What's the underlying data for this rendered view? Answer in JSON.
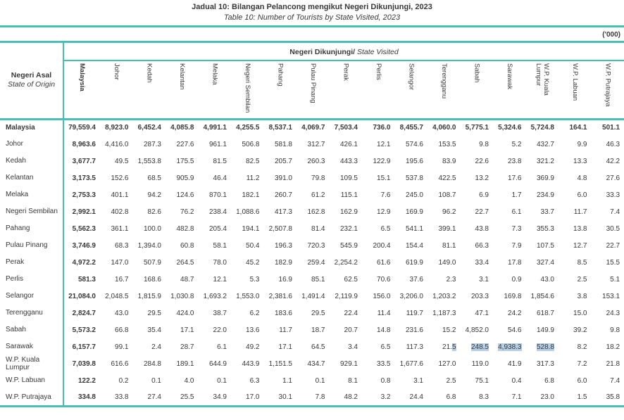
{
  "title": "Jadual 10: Bilangan Pelancong mengikut Negeri Dikunjungi, 2023",
  "subtitle": "Table 10: Number of Tourists by State Visited, 2023",
  "unit_label": "('000)",
  "colors": {
    "accent_teal": "#45c0b4",
    "selection_highlight": "#b5cfe6",
    "text": "#383838"
  },
  "table": {
    "origin_header_my": "Negeri Asal",
    "origin_header_en": "State of Origin",
    "visited_header_my": "Negeri Dikunjungi/",
    "visited_header_en": " State Visited",
    "columns": [
      "Malaysia",
      "Johor",
      "Kedah",
      "Kelantan",
      "Melaka",
      "Negeri Sembilan",
      "Pahang",
      "Pulau Pinang",
      "Perak",
      "Perlis",
      "Selangor",
      "Terengganu",
      "Sabah",
      "Sarawak",
      "W.P. Kuala Lumpur",
      "W.P. Labuan",
      "W.P. Putrajaya"
    ],
    "rows": [
      {
        "label": "Malaysia",
        "bold": true,
        "values": [
          "79,559.4",
          "8,923.0",
          "6,452.4",
          "4,085.8",
          "4,991.1",
          "4,255.5",
          "8,537.1",
          "4,069.7",
          "7,503.4",
          "736.0",
          "8,455.7",
          "4,060.0",
          "5,775.1",
          "5,324.6",
          "5,724.8",
          "164.1",
          "501.1"
        ]
      },
      {
        "label": "Johor",
        "values": [
          "8,963.6",
          "4,416.0",
          "287.3",
          "227.6",
          "961.1",
          "506.8",
          "581.8",
          "312.7",
          "426.1",
          "12.1",
          "574.6",
          "153.5",
          "9.8",
          "5.2",
          "432.7",
          "9.9",
          "46.3"
        ]
      },
      {
        "label": "Kedah",
        "values": [
          "3,677.7",
          "49.5",
          "1,553.8",
          "175.5",
          "81.5",
          "82.5",
          "205.7",
          "260.3",
          "443.3",
          "122.9",
          "195.6",
          "83.9",
          "22.6",
          "23.8",
          "321.2",
          "13.3",
          "42.2"
        ]
      },
      {
        "label": "Kelantan",
        "values": [
          "3,173.5",
          "152.6",
          "68.5",
          "905.9",
          "46.4",
          "11.2",
          "391.0",
          "79.8",
          "109.5",
          "15.1",
          "537.8",
          "422.5",
          "13.2",
          "17.6",
          "369.9",
          "4.8",
          "27.6"
        ]
      },
      {
        "label": "Melaka",
        "values": [
          "2,753.3",
          "401.1",
          "94.2",
          "124.6",
          "870.1",
          "182.1",
          "260.7",
          "61.2",
          "115.1",
          "7.6",
          "245.0",
          "108.7",
          "6.9",
          "1.7",
          "234.9",
          "6.0",
          "33.3"
        ]
      },
      {
        "label": "Negeri Sembilan",
        "values": [
          "2,992.1",
          "402.8",
          "82.6",
          "76.2",
          "238.4",
          "1,088.6",
          "417.3",
          "162.8",
          "162.9",
          "12.9",
          "169.9",
          "96.2",
          "22.7",
          "6.1",
          "33.7",
          "11.7",
          "7.4"
        ]
      },
      {
        "label": "Pahang",
        "values": [
          "5,562.3",
          "361.1",
          "100.0",
          "482.8",
          "205.4",
          "194.1",
          "2,507.8",
          "81.4",
          "232.1",
          "6.5",
          "541.1",
          "399.1",
          "43.8",
          "7.3",
          "355.3",
          "13.8",
          "30.5"
        ]
      },
      {
        "label": "Pulau Pinang",
        "values": [
          "3,746.9",
          "68.3",
          "1,394.0",
          "60.8",
          "58.1",
          "50.4",
          "196.3",
          "720.3",
          "545.9",
          "200.4",
          "154.4",
          "81.1",
          "66.3",
          "7.9",
          "107.5",
          "12.7",
          "22.7"
        ]
      },
      {
        "label": "Perak",
        "values": [
          "4,972.2",
          "147.0",
          "507.9",
          "264.5",
          "78.0",
          "45.2",
          "182.9",
          "259.4",
          "2,254.2",
          "61.6",
          "619.9",
          "149.0",
          "33.4",
          "17.8",
          "327.4",
          "8.5",
          "15.5"
        ]
      },
      {
        "label": "Perlis",
        "values": [
          "581.3",
          "16.7",
          "168.6",
          "48.7",
          "12.1",
          "5.3",
          "16.9",
          "85.1",
          "62.5",
          "70.6",
          "37.6",
          "2.3",
          "3.1",
          "0.9",
          "43.0",
          "2.5",
          "5.1"
        ]
      },
      {
        "label": "Selangor",
        "values": [
          "21,084.0",
          "2,048.5",
          "1,815.9",
          "1,030.8",
          "1,693.2",
          "1,553.0",
          "2,381.6",
          "1,491.4",
          "2,119.9",
          "156.0",
          "3,206.0",
          "1,203.2",
          "203.3",
          "169.8",
          "1,854.6",
          "3.8",
          "153.1"
        ]
      },
      {
        "label": "Terengganu",
        "values": [
          "2,824.7",
          "43.0",
          "29.5",
          "424.0",
          "38.7",
          "6.2",
          "183.6",
          "29.5",
          "22.4",
          "11.4",
          "119.7",
          "1,187.3",
          "47.1",
          "24.2",
          "618.7",
          "15.0",
          "24.3"
        ]
      },
      {
        "label": "Sabah",
        "values": [
          "5,573.2",
          "66.8",
          "35.4",
          "17.1",
          "22.0",
          "13.6",
          "11.7",
          "18.7",
          "20.7",
          "14.8",
          "231.6",
          "15.2",
          "4,852.0",
          "54.6",
          "149.9",
          "39.2",
          "9.8"
        ]
      },
      {
        "label": "Sarawak",
        "values": [
          "6,157.7",
          "99.1",
          "2.4",
          "28.7",
          "6.1",
          "49.2",
          "17.1",
          "64.5",
          "3.4",
          "6.5",
          "117.3",
          "21.5",
          "248.5",
          "4,938.3",
          "528.8",
          "8.2",
          "18.2"
        ],
        "highlight": {
          "11": "partial",
          "12": "full",
          "13": "full",
          "14": "full"
        }
      },
      {
        "label": "W.P. Kuala Lumpur",
        "values": [
          "7,039.8",
          "616.6",
          "284.8",
          "189.1",
          "644.9",
          "443.9",
          "1,151.5",
          "434.7",
          "929.1",
          "33.5",
          "1,677.6",
          "127.0",
          "119.0",
          "41.9",
          "317.3",
          "7.2",
          "21.8"
        ]
      },
      {
        "label": "W.P. Labuan",
        "values": [
          "122.2",
          "0.2",
          "0.1",
          "4.0",
          "0.1",
          "6.3",
          "1.1",
          "0.1",
          "8.1",
          "0.8",
          "3.1",
          "2.5",
          "75.1",
          "0.4",
          "6.8",
          "6.0",
          "7.4"
        ]
      },
      {
        "label": "W.P. Putrajaya",
        "values": [
          "334.8",
          "33.8",
          "27.4",
          "25.5",
          "34.9",
          "17.0",
          "30.1",
          "7.8",
          "48.2",
          "3.2",
          "24.4",
          "6.8",
          "8.3",
          "7.1",
          "23.0",
          "1.5",
          "35.8"
        ]
      }
    ]
  }
}
